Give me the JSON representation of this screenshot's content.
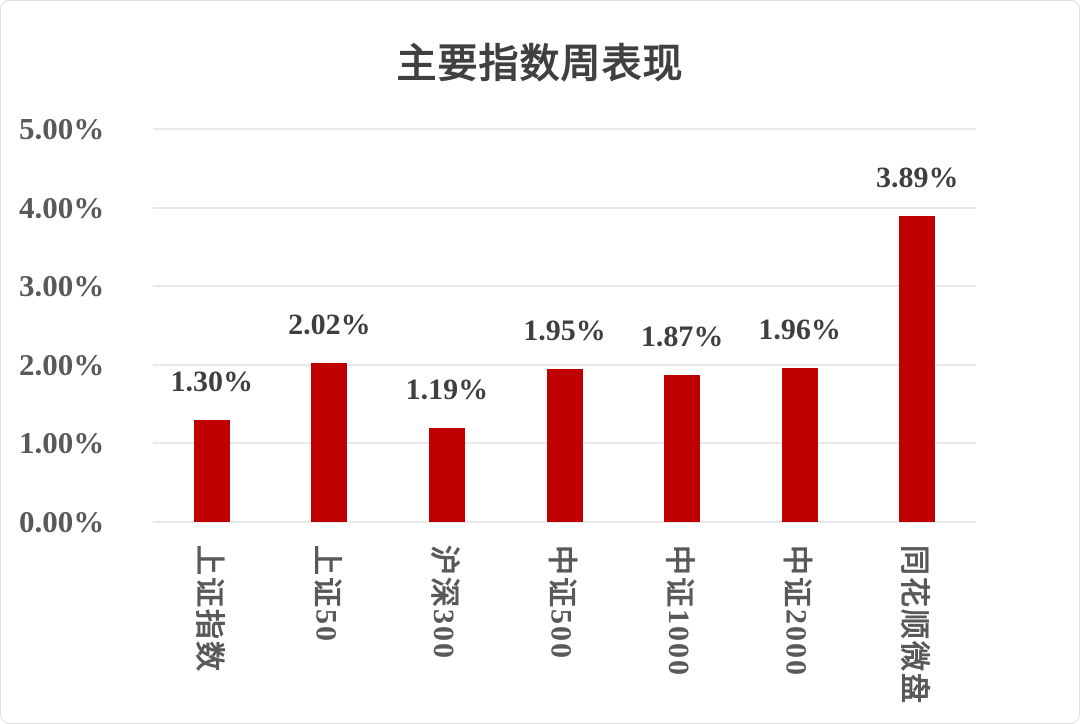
{
  "chart_data": {
    "type": "bar",
    "title": "主要指数周表现",
    "categories": [
      "上证指数",
      "上证50",
      "沪深300",
      "中证500",
      "中证1000",
      "中证2000",
      "同花顺微盘"
    ],
    "values": [
      1.3,
      2.02,
      1.19,
      1.95,
      1.87,
      1.96,
      3.89
    ],
    "data_labels": [
      "1.30%",
      "2.02%",
      "1.19%",
      "1.95%",
      "1.87%",
      "1.96%",
      "3.89%"
    ],
    "xlabel": "",
    "ylabel": "",
    "y_axis": {
      "ticks": [
        "5.00%",
        "4.00%",
        "3.00%",
        "2.00%",
        "1.00%",
        "0.00%"
      ],
      "min": 0,
      "max": 5
    },
    "grid": true,
    "legend": "none",
    "bar_color": "#c00000"
  },
  "colors": {
    "bar": "#c00000",
    "title_text": "#404040",
    "axis_text": "#595959",
    "data_label_text": "#3f3f3f",
    "gridline": "#e9e9e9",
    "background": "#ffffff",
    "border": "#dedede"
  }
}
